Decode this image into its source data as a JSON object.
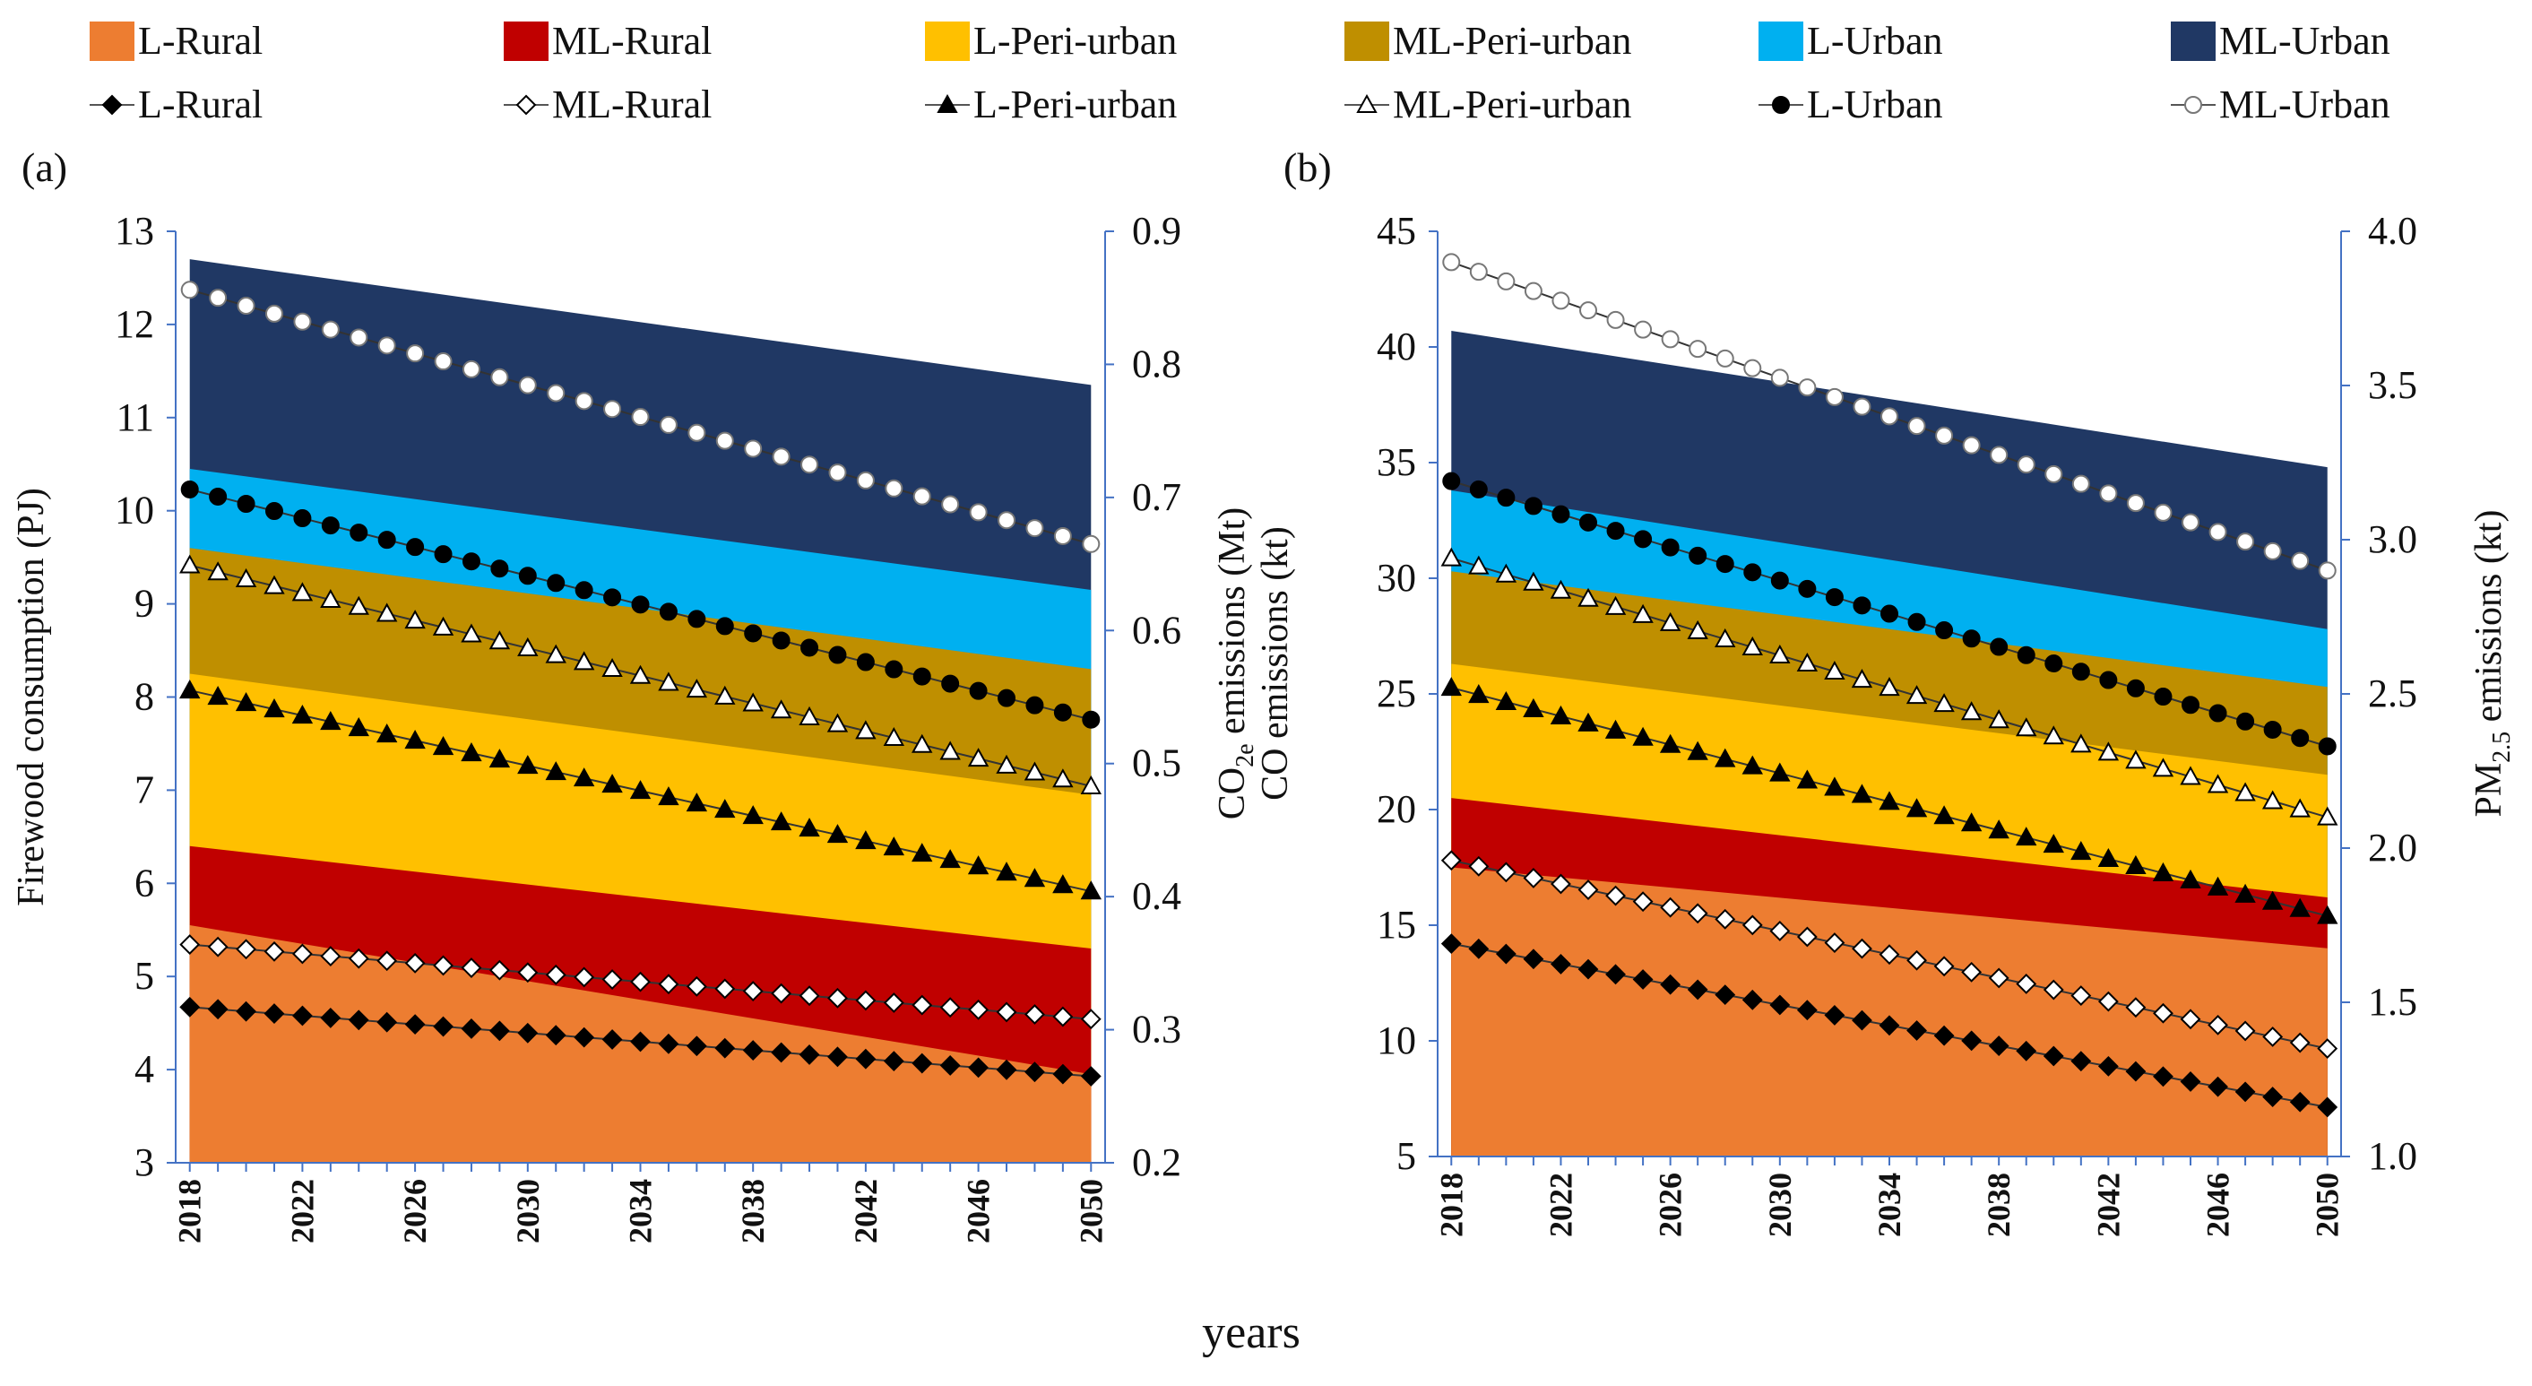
{
  "x_axis_title": "years",
  "legend": {
    "area_items": [
      {
        "label": "L-Rural",
        "color": "#ED7D31"
      },
      {
        "label": "ML-Rural",
        "color": "#C00000"
      },
      {
        "label": "L-Peri-urban",
        "color": "#FFC000"
      },
      {
        "label": "ML-Peri-urban",
        "color": "#BF8F00"
      },
      {
        "label": "L-Urban",
        "color": "#00B0F0"
      },
      {
        "label": "ML-Urban",
        "color": "#203864"
      }
    ],
    "line_items": [
      {
        "label": "L-Rural",
        "marker": "filled-diamond"
      },
      {
        "label": "ML-Rural",
        "marker": "open-diamond"
      },
      {
        "label": "L-Peri-urban",
        "marker": "filled-triangle"
      },
      {
        "label": "ML-Peri-urban",
        "marker": "open-triangle"
      },
      {
        "label": "L-Urban",
        "marker": "filled-circle"
      },
      {
        "label": "ML-Urban",
        "marker": "open-circle"
      }
    ]
  },
  "chart_data": [
    {
      "panel": "(a)",
      "type": "area",
      "x_start": 2018,
      "x_end": 2050,
      "x_step": 1,
      "x_tick_labels": [
        "2018",
        "2022",
        "2026",
        "2030",
        "2034",
        "2038",
        "2042",
        "2046",
        "2050"
      ],
      "ylabel": "Firewood consumption (PJ)",
      "ylim": [
        3,
        13
      ],
      "y_ticks": [
        "3",
        "4",
        "5",
        "6",
        "7",
        "8",
        "9",
        "10",
        "11",
        "12",
        "13"
      ],
      "y2label_main": "CO",
      "y2label_sub": "2e",
      "y2label_rest": " emissions (Mt)",
      "y2lim": [
        0.2,
        0.9
      ],
      "y2_ticks": [
        "0.2",
        "0.3",
        "0.4",
        "0.5",
        "0.6",
        "0.7",
        "0.8",
        "0.9"
      ],
      "stacked_area_top_values": {
        "L-Rural": [
          5.55,
          3.95
        ],
        "ML-Rural": [
          6.4,
          5.3
        ],
        "L-Peri-urban": [
          8.25,
          6.95
        ],
        "ML-Peri-urban": [
          9.6,
          8.3
        ],
        "L-Urban": [
          10.45,
          9.15
        ],
        "ML-Urban": [
          12.7,
          11.35
        ]
      },
      "line_series": [
        {
          "name": "L-Rural",
          "axis": "secondary",
          "start": 0.317,
          "end": 0.265
        },
        {
          "name": "ML-Rural",
          "axis": "secondary",
          "start": 0.364,
          "end": 0.308
        },
        {
          "name": "L-Peri-urban",
          "axis": "secondary",
          "start": 0.555,
          "end": 0.404
        },
        {
          "name": "ML-Peri-urban",
          "axis": "secondary",
          "start": 0.649,
          "end": 0.483
        },
        {
          "name": "L-Urban",
          "axis": "secondary",
          "start": 0.706,
          "end": 0.533
        },
        {
          "name": "ML-Urban",
          "axis": "secondary",
          "start": 0.856,
          "end": 0.665
        }
      ]
    },
    {
      "panel": "(b)",
      "type": "area",
      "x_start": 2018,
      "x_end": 2050,
      "x_step": 1,
      "x_tick_labels": [
        "2018",
        "2022",
        "2026",
        "2030",
        "2034",
        "2038",
        "2042",
        "2046",
        "2050"
      ],
      "ylabel": "CO emissions (kt)",
      "ylim": [
        5,
        45
      ],
      "y_ticks": [
        "5",
        "10",
        "15",
        "20",
        "25",
        "30",
        "35",
        "40",
        "45"
      ],
      "y2label_main": "PM",
      "y2label_sub": "2.5",
      "y2label_rest": " emissions (kt)",
      "y2lim": [
        1.0,
        4.0
      ],
      "y2_ticks": [
        "1.0",
        "1.5",
        "2.0",
        "2.5",
        "3.0",
        "3.5",
        "4.0"
      ],
      "stacked_area_top_values": {
        "L-Rural": [
          17.5,
          14.0
        ],
        "ML-Rural": [
          20.5,
          16.2
        ],
        "L-Peri-urban": [
          26.3,
          21.5
        ],
        "ML-Peri-urban": [
          30.3,
          25.3
        ],
        "L-Urban": [
          33.8,
          27.8
        ],
        "ML-Urban": [
          40.7,
          34.8
        ]
      },
      "line_series": [
        {
          "name": "L-Rural",
          "axis": "secondary",
          "start": 1.69,
          "end": 1.16
        },
        {
          "name": "ML-Rural",
          "axis": "secondary",
          "start": 1.96,
          "end": 1.35
        },
        {
          "name": "L-Peri-urban",
          "axis": "secondary",
          "start": 2.52,
          "end": 1.78
        },
        {
          "name": "ML-Peri-urban",
          "axis": "secondary",
          "start": 2.94,
          "end": 2.1
        },
        {
          "name": "L-Urban",
          "axis": "secondary",
          "start": 3.19,
          "end": 2.33
        },
        {
          "name": "ML-Urban",
          "axis": "secondary",
          "start": 3.9,
          "end": 2.9
        }
      ]
    }
  ]
}
